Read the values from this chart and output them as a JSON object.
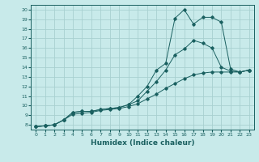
{
  "xlabel": "Humidex (Indice chaleur)",
  "bg_color": "#c8eaea",
  "grid_color": "#a8d0d0",
  "line_color": "#1a6060",
  "spine_color": "#1a6060",
  "xlim": [
    -0.5,
    23.5
  ],
  "ylim": [
    7.5,
    20.5
  ],
  "xticks": [
    0,
    1,
    2,
    3,
    4,
    5,
    6,
    7,
    8,
    9,
    10,
    11,
    12,
    13,
    14,
    15,
    16,
    17,
    18,
    19,
    20,
    21,
    22,
    23
  ],
  "yticks": [
    8,
    9,
    10,
    11,
    12,
    13,
    14,
    15,
    16,
    17,
    18,
    19,
    20
  ],
  "line1_x": [
    0,
    1,
    2,
    3,
    4,
    5,
    6,
    7,
    8,
    9,
    10,
    11,
    12,
    13,
    14,
    15,
    16,
    17,
    18,
    19,
    20,
    21,
    22,
    23
  ],
  "line1_y": [
    7.8,
    7.9,
    8.0,
    8.5,
    9.3,
    9.4,
    9.4,
    9.6,
    9.7,
    9.8,
    10.1,
    11.0,
    12.0,
    13.7,
    14.4,
    19.1,
    20.0,
    18.5,
    19.2,
    19.2,
    18.7,
    13.8,
    13.5,
    13.7
  ],
  "line2_x": [
    0,
    1,
    2,
    3,
    4,
    5,
    6,
    7,
    8,
    9,
    10,
    11,
    12,
    13,
    14,
    15,
    16,
    17,
    18,
    19,
    20,
    21,
    22,
    23
  ],
  "line2_y": [
    7.8,
    7.9,
    8.0,
    8.5,
    9.3,
    9.4,
    9.4,
    9.6,
    9.7,
    9.8,
    10.1,
    10.5,
    11.5,
    12.5,
    13.7,
    15.3,
    15.9,
    16.8,
    16.5,
    16.0,
    14.0,
    13.6,
    13.5,
    13.7
  ],
  "line3_x": [
    0,
    1,
    2,
    3,
    4,
    5,
    6,
    7,
    8,
    9,
    10,
    11,
    12,
    13,
    14,
    15,
    16,
    17,
    18,
    19,
    20,
    21,
    22,
    23
  ],
  "line3_y": [
    7.8,
    7.9,
    8.0,
    8.5,
    9.1,
    9.2,
    9.3,
    9.5,
    9.6,
    9.7,
    9.9,
    10.2,
    10.7,
    11.2,
    11.8,
    12.3,
    12.8,
    13.2,
    13.4,
    13.5,
    13.5,
    13.5,
    13.5,
    13.7
  ],
  "tick_fontsize": 4.5,
  "xlabel_fontsize": 6.5,
  "marker_size": 1.8,
  "line_width": 0.7
}
